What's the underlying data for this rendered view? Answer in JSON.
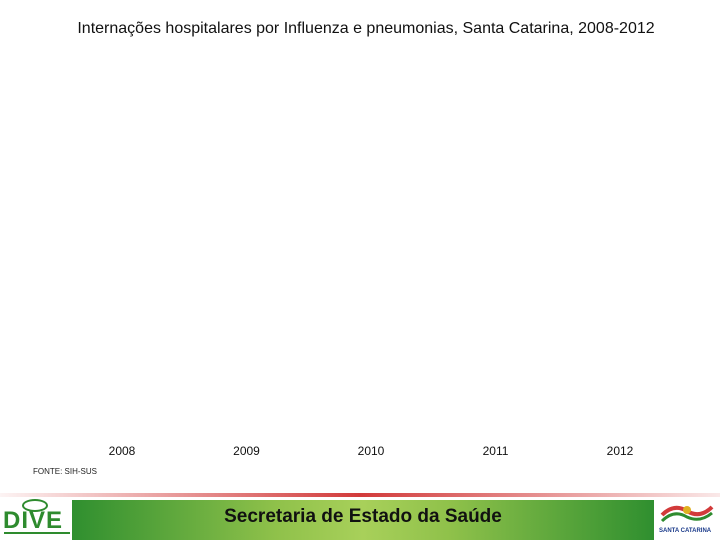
{
  "slide": {
    "title": "Internações hospitalares por Influenza e pneumonias, Santa Catarina, 2008-2012",
    "source": "FONTE: SIH-SUS"
  },
  "footer": {
    "text": "Secretaria de Estado da Saúde",
    "left_logo_text": "DIVE",
    "right_logo_text": "SANTA CATARINA"
  },
  "chart_data": {
    "type": "bar",
    "title": "Internações hospitalares por Influenza e pneumonias, Santa Catarina, 2008-2012",
    "categories": [
      "2008",
      "2009",
      "2010",
      "2011",
      "2012"
    ],
    "series": [],
    "xlabel": "",
    "ylabel": "",
    "grid": false
  },
  "colors": {
    "footer_green": "#8fc14a",
    "accent_red": "#d23a3a",
    "logo_green": "#2e8b2e"
  }
}
